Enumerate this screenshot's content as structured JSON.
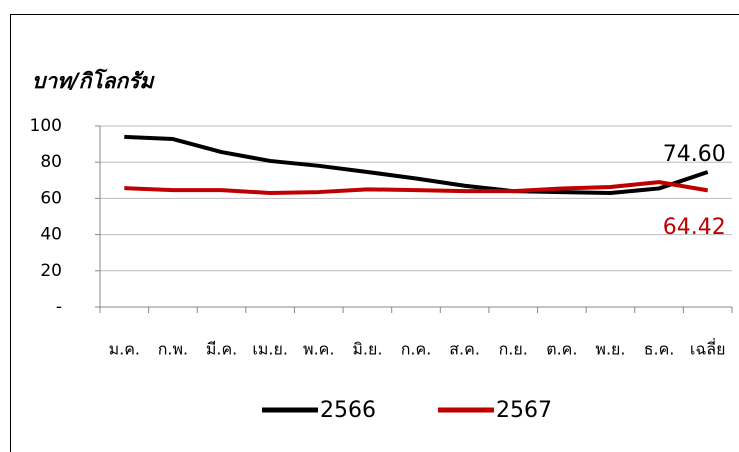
{
  "chart_data": {
    "type": "line",
    "y_label": "บาท/กิโลกรัม",
    "categories": [
      "ม.ค.",
      "ก.พ.",
      "มี.ค.",
      "เม.ย.",
      "พ.ค.",
      "มิ.ย.",
      "ก.ค.",
      "ส.ค.",
      "ก.ย.",
      "ต.ค.",
      "พ.ย.",
      "ธ.ค.",
      "เฉลี่ย"
    ],
    "series": [
      {
        "name": "2566",
        "color": "#000000",
        "values": [
          94,
          92.8,
          85.6,
          80.7,
          78,
          74.6,
          71,
          67,
          64,
          63.5,
          63,
          65.5,
          74.6
        ],
        "value_labels": [
          null,
          null,
          null,
          null,
          null,
          null,
          null,
          null,
          null,
          null,
          null,
          null,
          "74.60"
        ]
      },
      {
        "name": "2567",
        "color": "#c00000",
        "values": [
          65.7,
          64.6,
          64.6,
          63,
          63.5,
          65,
          64.6,
          64,
          64,
          65.5,
          66.3,
          69,
          64.42
        ],
        "value_labels": [
          null,
          null,
          null,
          null,
          null,
          null,
          null,
          null,
          null,
          null,
          null,
          null,
          "64.42"
        ]
      }
    ],
    "ylim": [
      0,
      100
    ],
    "yticks": [
      {
        "value": 0,
        "label": "-"
      },
      20,
      40,
      60,
      80,
      100
    ],
    "grid": true,
    "legend": "bottom"
  }
}
